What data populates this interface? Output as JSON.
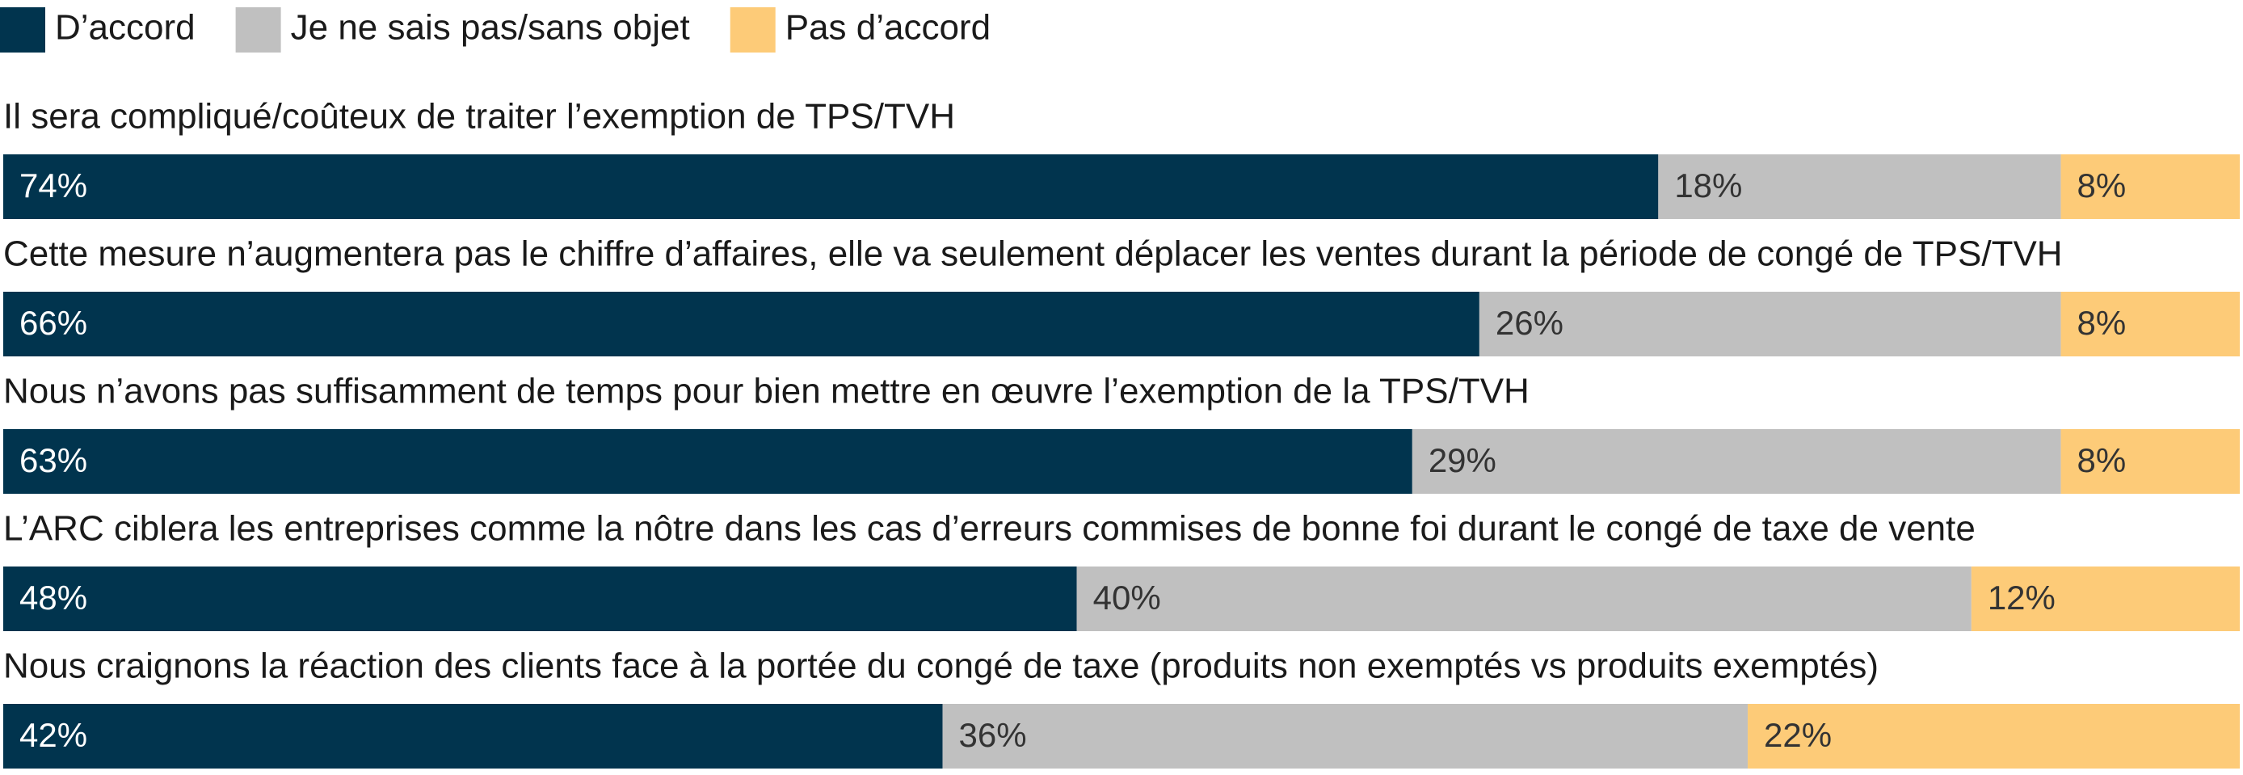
{
  "chart_data": {
    "type": "stacked-bar-horizontal",
    "categories": [
      "Il sera compliqué/coûteux de traiter l’exemption de TPS/TVH",
      "Cette mesure n’augmentera pas le chiffre d’affaires, elle va seulement déplacer les ventes durant la période de congé de TPS/TVH",
      "Nous n’avons pas suffisamment de temps pour bien mettre en œuvre l’exemption de la TPS/TVH",
      "L’ARC ciblera les entreprises comme la nôtre dans les cas d’erreurs commises de bonne foi durant le congé de taxe de vente",
      "Nous craignons la réaction des clients face à la portée du congé de taxe (produits non exemptés vs produits exemptés)"
    ],
    "series": [
      {
        "name": "D’accord",
        "color": "#01344e",
        "label_color": "#ffffff",
        "values": [
          74,
          66,
          63,
          48,
          42
        ],
        "value_labels": [
          "74%",
          "66%",
          "63%",
          "48%",
          "42%"
        ]
      },
      {
        "name": "Je ne sais pas/sans objet",
        "color": "#c0c0c0",
        "label_color": "#333333",
        "values": [
          18,
          26,
          29,
          40,
          36
        ],
        "value_labels": [
          "18%",
          "26%",
          "29%",
          "40%",
          "36%"
        ]
      },
      {
        "name": "Pas d’accord",
        "color": "#fdcb78",
        "label_color": "#333333",
        "values": [
          8,
          8,
          8,
          12,
          22
        ],
        "value_labels": [
          "8%",
          "8%",
          "8%",
          "12%",
          "22%"
        ]
      }
    ],
    "xlim": [
      0,
      100
    ],
    "legend": "top-left"
  }
}
